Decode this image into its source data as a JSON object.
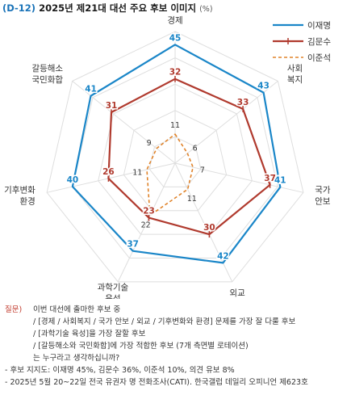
{
  "header": {
    "tag": "(D-12)",
    "title": "2025년 제21대 대선 주요 후보 이미지",
    "unit": "(%)"
  },
  "chart_data": {
    "type": "radar",
    "axes": [
      {
        "label": [
          "경제"
        ],
        "label_anchor": "middle"
      },
      {
        "label": [
          "사회",
          "복지"
        ],
        "label_anchor": "start"
      },
      {
        "label": [
          "국가",
          "안보"
        ],
        "label_anchor": "start"
      },
      {
        "label": [
          "외교"
        ],
        "label_anchor": "middle"
      },
      {
        "label": [
          "과학기술",
          "육성"
        ],
        "label_anchor": "middle"
      },
      {
        "label": [
          "기후변화",
          "환경"
        ],
        "label_anchor": "end"
      },
      {
        "label": [
          "갈등해소",
          "국민화합"
        ],
        "label_anchor": "end"
      }
    ],
    "rmax": 50,
    "rings": [
      10,
      20,
      30,
      40,
      50
    ],
    "series": [
      {
        "name": "이재명",
        "color": "#1a86c8",
        "dash": "",
        "marker": "none",
        "values": [
          45,
          43,
          41,
          42,
          37,
          40,
          41
        ]
      },
      {
        "name": "김문수",
        "color": "#b03a2e",
        "dash": "",
        "marker": "tick",
        "values": [
          32,
          33,
          37,
          30,
          23,
          26,
          31
        ]
      },
      {
        "name": "이준석",
        "color": "#e0832a",
        "dash": "4,3",
        "marker": "none",
        "values": [
          11,
          6,
          7,
          11,
          22,
          11,
          9
        ]
      }
    ]
  },
  "footer": {
    "question_label": "질문)",
    "question_lines": [
      "이번 대선에 출마한 후보 중",
      "/ [경제 / 사회복지 / 국가 안보 / 외교 / 기후변화와 환경] 문제를 가장 잘 다룰 후보",
      "/ [과학기술 육성]을 가장 잘할 후보",
      "/ [갈등해소와 국민화합]에 가장 적합한 후보 (7개 측면별 로테이션)",
      "는 누구라고 생각하십니까?"
    ],
    "support_note": "- 후보 지지도: 이재명 45%, 김문수 36%, 이준석 10%, 의견 유보 8%",
    "source_note": "- 2025년 5월 20~22일 전국 유권자 명 전화조사(CATI). 한국갤럽 데일리 오피니언 제623호"
  }
}
